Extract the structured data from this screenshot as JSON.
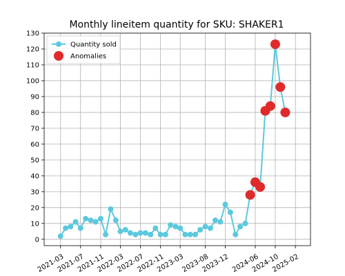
{
  "chart_data": {
    "type": "line",
    "title": "Monthly lineitem quantity for SKU: SHAKER1",
    "xlabel": "",
    "ylabel": "",
    "grid": true,
    "legend_position": "top-left",
    "xlim": [
      "2020-11-21",
      "2025-05-04"
    ],
    "ylim": [
      -4,
      130
    ],
    "x_ticks": [
      "2021-03",
      "2021-07",
      "2021-11",
      "2022-03",
      "2022-07",
      "2022-11",
      "2023-03",
      "2023-08",
      "2023-12",
      "2024-06",
      "2024-10",
      "2025-02"
    ],
    "y_ticks": [
      0,
      10,
      20,
      30,
      40,
      50,
      60,
      70,
      80,
      90,
      100,
      110,
      120,
      130
    ],
    "colors": {
      "line": "#5bc8de",
      "anomaly": "#e02b2b",
      "grid": "#b0b0b0"
    },
    "series": [
      {
        "name": "Quantity sold",
        "points": [
          [
            "2021-03-01",
            2
          ],
          [
            "2021-04-01",
            7
          ],
          [
            "2021-05-01",
            8
          ],
          [
            "2021-06-01",
            11
          ],
          [
            "2021-07-01",
            7
          ],
          [
            "2021-08-01",
            13
          ],
          [
            "2021-09-01",
            12
          ],
          [
            "2021-10-01",
            11
          ],
          [
            "2021-11-01",
            13
          ],
          [
            "2021-12-01",
            3
          ],
          [
            "2022-01-01",
            19
          ],
          [
            "2022-02-01",
            12
          ],
          [
            "2022-03-01",
            5
          ],
          [
            "2022-04-01",
            6
          ],
          [
            "2022-05-01",
            4
          ],
          [
            "2022-06-01",
            3
          ],
          [
            "2022-07-01",
            4
          ],
          [
            "2022-08-01",
            4
          ],
          [
            "2022-09-01",
            3
          ],
          [
            "2022-10-01",
            7
          ],
          [
            "2022-11-01",
            3
          ],
          [
            "2022-12-01",
            3
          ],
          [
            "2023-01-01",
            9
          ],
          [
            "2023-02-01",
            8
          ],
          [
            "2023-03-01",
            7
          ],
          [
            "2023-04-01",
            3
          ],
          [
            "2023-05-01",
            3
          ],
          [
            "2023-06-01",
            3
          ],
          [
            "2023-07-01",
            6
          ],
          [
            "2023-08-01",
            8
          ],
          [
            "2023-09-01",
            7
          ],
          [
            "2023-10-01",
            12
          ],
          [
            "2023-11-01",
            11
          ],
          [
            "2023-12-01",
            22
          ],
          [
            "2024-01-01",
            17
          ],
          [
            "2024-02-01",
            3
          ],
          [
            "2024-03-01",
            8
          ],
          [
            "2024-04-01",
            10
          ],
          [
            "2024-05-01",
            28
          ],
          [
            "2024-06-01",
            36
          ],
          [
            "2024-07-01",
            33
          ],
          [
            "2024-08-01",
            81
          ],
          [
            "2024-09-01",
            84
          ],
          [
            "2024-10-01",
            123
          ],
          [
            "2024-11-01",
            96
          ],
          [
            "2024-12-01",
            80
          ]
        ]
      },
      {
        "name": "Anomalies",
        "points": [
          [
            "2024-05-01",
            28
          ],
          [
            "2024-06-01",
            36
          ],
          [
            "2024-07-01",
            33
          ],
          [
            "2024-08-01",
            81
          ],
          [
            "2024-09-01",
            84
          ],
          [
            "2024-10-01",
            123
          ],
          [
            "2024-11-01",
            96
          ],
          [
            "2024-12-01",
            80
          ]
        ]
      }
    ]
  }
}
